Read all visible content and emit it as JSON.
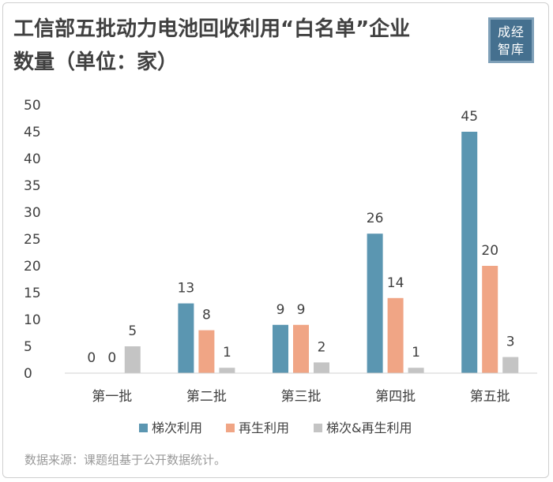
{
  "header": {
    "title_line1": "工信部五批动力电池回收利用“白名单”企业",
    "title_line2": "数量（单位：家）",
    "logo_line1": "成经",
    "logo_line2": "智库"
  },
  "source": "数据来源：课题组基于公开数据统计。",
  "colors": {
    "cascade": "#5b96b1",
    "recycle": "#f0a585",
    "both": "#c4c4c4",
    "text": "#404040"
  },
  "chart_data": {
    "type": "bar",
    "title": "",
    "xlabel": "",
    "ylabel": "",
    "ylim": [
      0,
      50
    ],
    "yticks": [
      0,
      5,
      10,
      15,
      20,
      25,
      30,
      35,
      40,
      45,
      50
    ],
    "categories": [
      "第一批",
      "第二批",
      "第三批",
      "第四批",
      "第五批"
    ],
    "grid": false,
    "legend_position": "bottom",
    "series": [
      {
        "name": "梯次利用",
        "color": "#5b96b1",
        "values": [
          0,
          13,
          9,
          26,
          45
        ]
      },
      {
        "name": "再生利用",
        "color": "#f0a585",
        "values": [
          0,
          8,
          9,
          14,
          20
        ]
      },
      {
        "name": "梯次&再生利用",
        "color": "#c4c4c4",
        "values": [
          5,
          1,
          2,
          1,
          3
        ]
      }
    ]
  }
}
